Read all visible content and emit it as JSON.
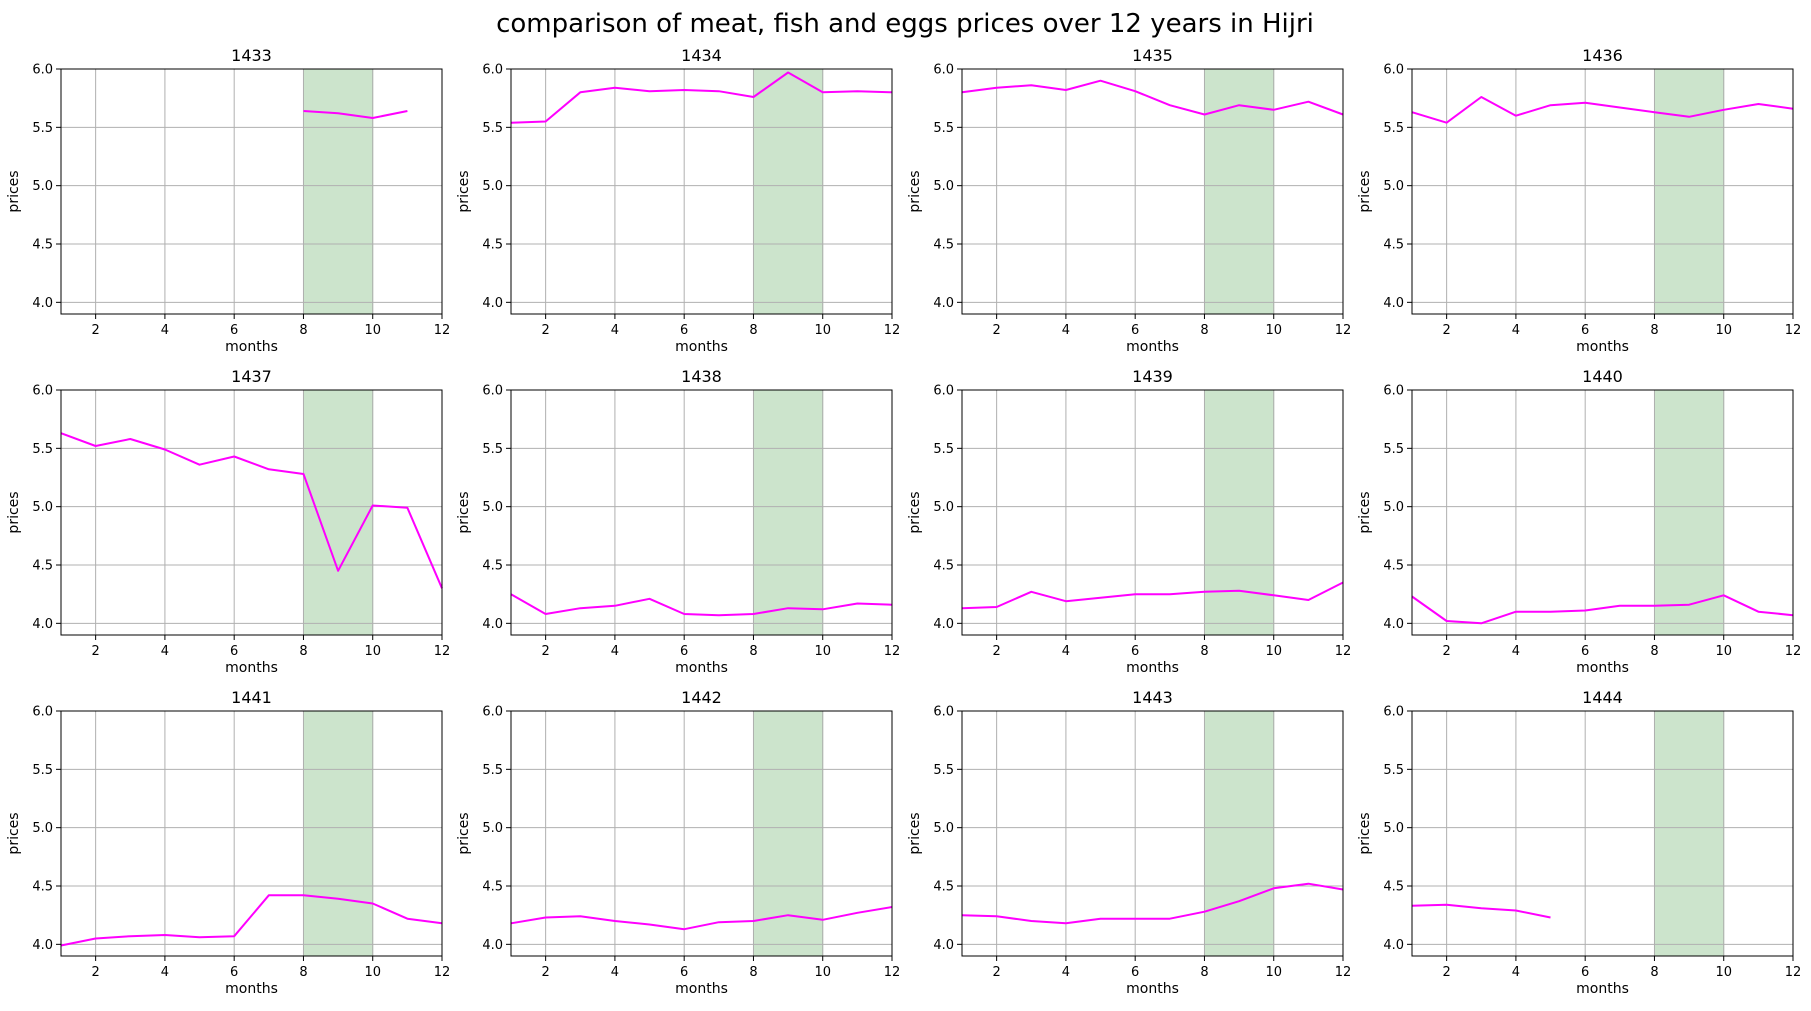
{
  "chart_data": {
    "type": "line",
    "title": "comparison of meat, fish and eggs prices over 12 years in Hijri",
    "xlabel": "months",
    "ylabel": "prices",
    "xlim": [
      1,
      12
    ],
    "ylim": [
      3.9,
      6.0
    ],
    "xticks": [
      2,
      4,
      6,
      8,
      10,
      12
    ],
    "yticks": [
      4.0,
      4.5,
      5.0,
      5.5,
      6.0
    ],
    "ytick_labels": [
      "4.0",
      "4.5",
      "5.0",
      "5.5",
      "6.0"
    ],
    "grid": true,
    "highlight_span": [
      8,
      10
    ],
    "colors": {
      "line": "#ff00ff",
      "span": "#cce4cc",
      "grid": "#b0b0b0"
    },
    "panels": [
      {
        "title": "1433",
        "x": [
          8,
          9,
          10,
          11
        ],
        "values": [
          5.64,
          5.62,
          5.58,
          5.64
        ]
      },
      {
        "title": "1434",
        "x": [
          1,
          2,
          3,
          4,
          5,
          6,
          7,
          8,
          9,
          10,
          11,
          12
        ],
        "values": [
          5.54,
          5.55,
          5.8,
          5.84,
          5.81,
          5.82,
          5.81,
          5.76,
          5.97,
          5.8,
          5.81,
          5.8
        ]
      },
      {
        "title": "1435",
        "x": [
          1,
          2,
          3,
          4,
          5,
          6,
          7,
          8,
          9,
          10,
          11,
          12
        ],
        "values": [
          5.8,
          5.84,
          5.86,
          5.82,
          5.9,
          5.81,
          5.69,
          5.61,
          5.69,
          5.65,
          5.72,
          5.61
        ]
      },
      {
        "title": "1436",
        "x": [
          1,
          2,
          3,
          4,
          5,
          6,
          7,
          8,
          9,
          10,
          11,
          12
        ],
        "values": [
          5.63,
          5.54,
          5.76,
          5.6,
          5.69,
          5.71,
          5.67,
          5.63,
          5.59,
          5.65,
          5.7,
          5.66
        ]
      },
      {
        "title": "1437",
        "x": [
          1,
          2,
          3,
          4,
          5,
          6,
          7,
          8,
          9,
          10,
          11,
          12
        ],
        "values": [
          5.63,
          5.52,
          5.58,
          5.49,
          5.36,
          5.43,
          5.32,
          5.28,
          4.45,
          5.01,
          4.99,
          4.3
        ]
      },
      {
        "title": "1438",
        "x": [
          1,
          2,
          3,
          4,
          5,
          6,
          7,
          8,
          9,
          10,
          11,
          12
        ],
        "values": [
          4.25,
          4.08,
          4.13,
          4.15,
          4.21,
          4.08,
          4.07,
          4.08,
          4.13,
          4.12,
          4.17,
          4.16
        ]
      },
      {
        "title": "1439",
        "x": [
          1,
          2,
          3,
          4,
          5,
          6,
          7,
          8,
          9,
          10,
          11,
          12
        ],
        "values": [
          4.13,
          4.14,
          4.27,
          4.19,
          4.22,
          4.25,
          4.25,
          4.27,
          4.28,
          4.24,
          4.2,
          4.35
        ]
      },
      {
        "title": "1440",
        "x": [
          1,
          2,
          3,
          4,
          5,
          6,
          7,
          8,
          9,
          10,
          11,
          12
        ],
        "values": [
          4.23,
          4.02,
          4.0,
          4.1,
          4.1,
          4.11,
          4.15,
          4.15,
          4.16,
          4.24,
          4.1,
          4.07
        ]
      },
      {
        "title": "1441",
        "x": [
          1,
          2,
          3,
          4,
          5,
          6,
          7,
          8,
          9,
          10,
          11,
          12
        ],
        "values": [
          3.99,
          4.05,
          4.07,
          4.08,
          4.06,
          4.07,
          4.42,
          4.42,
          4.39,
          4.35,
          4.22,
          4.18
        ]
      },
      {
        "title": "1442",
        "x": [
          1,
          2,
          3,
          4,
          5,
          6,
          7,
          8,
          9,
          10,
          11,
          12
        ],
        "values": [
          4.18,
          4.23,
          4.24,
          4.2,
          4.17,
          4.13,
          4.19,
          4.2,
          4.25,
          4.21,
          4.27,
          4.32
        ]
      },
      {
        "title": "1443",
        "x": [
          1,
          2,
          3,
          4,
          5,
          6,
          7,
          8,
          9,
          10,
          11,
          12
        ],
        "values": [
          4.25,
          4.24,
          4.2,
          4.18,
          4.22,
          4.22,
          4.22,
          4.28,
          4.37,
          4.48,
          4.52,
          4.47
        ]
      },
      {
        "title": "1444",
        "x": [
          1,
          2,
          3,
          4,
          5
        ],
        "values": [
          4.33,
          4.34,
          4.31,
          4.29,
          4.23
        ]
      }
    ]
  }
}
